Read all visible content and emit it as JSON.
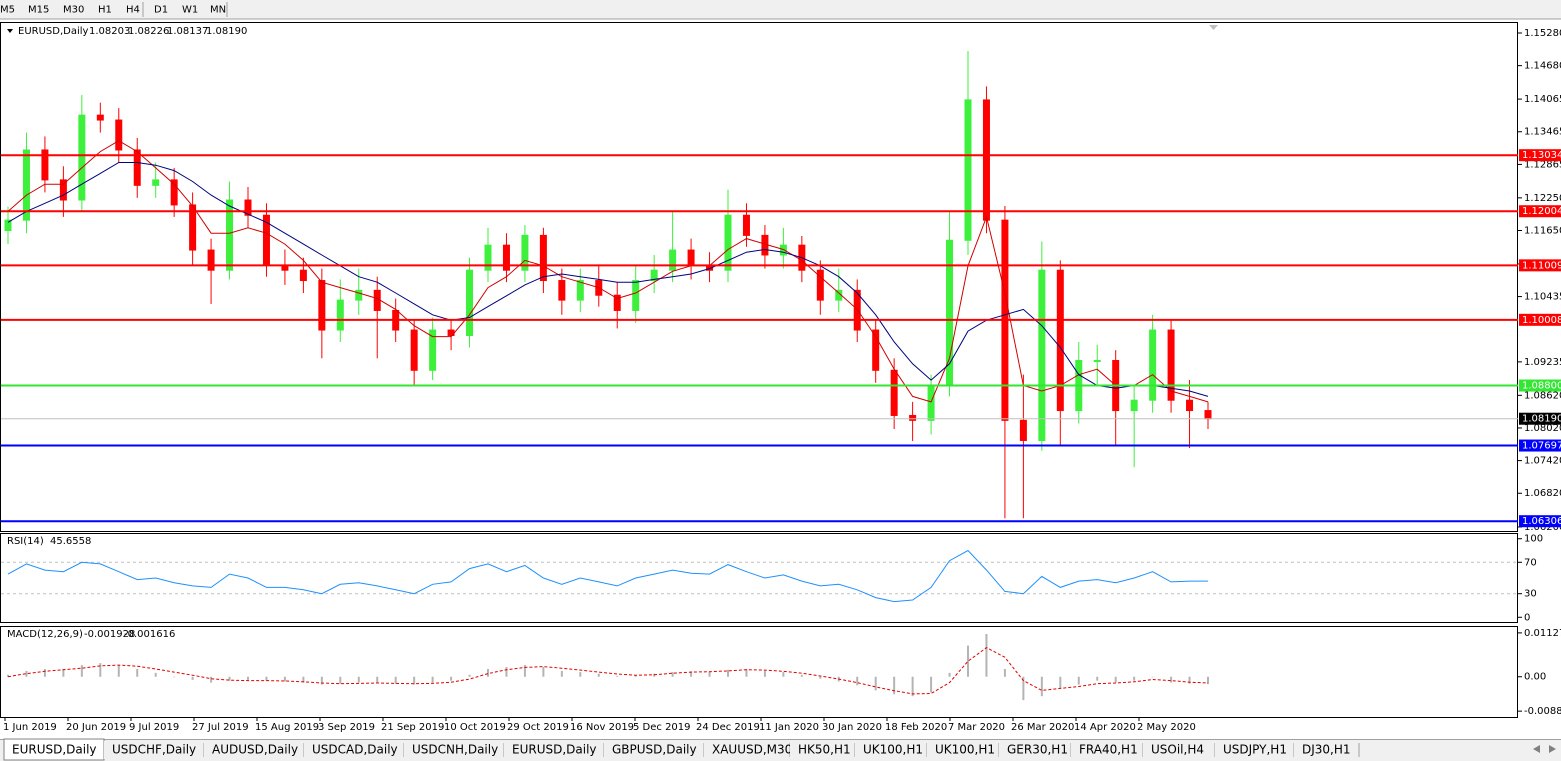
{
  "toolbar": {
    "timeframes": [
      "M5",
      "M15",
      "M30",
      "H1",
      "H4",
      "D1",
      "W1",
      "MN"
    ]
  },
  "chart_data": {
    "type": "candlestick",
    "symbol": "EURUSD,Daily",
    "header_ohlc": [
      "1.08203",
      "1.08226",
      "1.08137",
      "1.08190"
    ],
    "x_labels": [
      "1 Jun 2019",
      "20 Jun 2019",
      "9 Jul 2019",
      "27 Jul 2019",
      "15 Aug 2019",
      "3 Sep 2019",
      "21 Sep 2019",
      "10 Oct 2019",
      "29 Oct 2019",
      "16 Nov 2019",
      "5 Dec 2019",
      "24 Dec 2019",
      "11 Jan 2020",
      "30 Jan 2020",
      "18 Feb 2020",
      "7 Mar 2020",
      "26 Mar 2020",
      "14 Apr 2020",
      "2 May 2020"
    ],
    "open": [
      1.1165,
      1.1184,
      1.1313,
      1.1258,
      1.1221,
      1.1377,
      1.1368,
      1.1313,
      1.1248,
      1.1258,
      1.1212,
      1.1129,
      1.1092,
      1.1221,
      1.1193,
      1.1101,
      1.1092,
      1.1073,
      1.0982,
      1.1037,
      1.1055,
      1.1018,
      1.0982,
      1.0908,
      1.0982,
      1.0972,
      1.1092,
      1.1138,
      1.1092,
      1.1156,
      1.1073,
      1.1037,
      1.1073,
      1.1046,
      1.1018,
      1.1073,
      1.1092,
      1.1129,
      1.1101,
      1.1092,
      1.1193,
      1.1156,
      1.112,
      1.1138,
      1.1092,
      1.1037,
      1.1055,
      1.0982,
      1.0908,
      1.0825,
      1.0816,
      1.088,
      1.1147,
      1.1405,
      1.1184,
      1.0816,
      1.0779,
      1.1092,
      1.0834,
      1.0926,
      1.0926,
      1.0834,
      1.0853,
      1.0982,
      1.0853,
      1.0834
    ],
    "high": [
      1.1209,
      1.1345,
      1.1338,
      1.1283,
      1.1414,
      1.14,
      1.139,
      1.1335,
      1.129,
      1.128,
      1.1235,
      1.115,
      1.1255,
      1.1245,
      1.1215,
      1.113,
      1.1115,
      1.1095,
      1.1075,
      1.1095,
      1.108,
      1.104,
      1.1,
      1.1005,
      1.1,
      1.1115,
      1.117,
      1.116,
      1.1175,
      1.117,
      1.1095,
      1.1095,
      1.11,
      1.107,
      1.11,
      1.112,
      1.12,
      1.115,
      1.1125,
      1.124,
      1.1215,
      1.1175,
      1.117,
      1.1155,
      1.111,
      1.1095,
      1.1075,
      1.1,
      1.093,
      1.085,
      1.09,
      1.12,
      1.1495,
      1.143,
      1.121,
      1.09,
      1.1145,
      1.111,
      1.096,
      1.0955,
      1.0945,
      1.088,
      1.101,
      1.1,
      1.089,
      1.085
    ],
    "low": [
      1.114,
      1.116,
      1.1235,
      1.119,
      1.12,
      1.1345,
      1.129,
      1.1225,
      1.1225,
      1.119,
      1.11,
      1.103,
      1.1075,
      1.117,
      1.108,
      1.1065,
      1.105,
      1.093,
      1.096,
      1.101,
      1.093,
      1.096,
      1.088,
      1.089,
      1.0945,
      1.095,
      1.107,
      1.107,
      1.107,
      1.105,
      1.101,
      1.1015,
      1.1025,
      1.0985,
      1.0995,
      1.105,
      1.107,
      1.1075,
      1.107,
      1.107,
      1.1135,
      1.1095,
      1.1095,
      1.107,
      1.101,
      1.1015,
      1.096,
      1.0885,
      1.08,
      1.0778,
      1.079,
      1.086,
      1.112,
      1.116,
      1.0636,
      1.0636,
      1.076,
      1.077,
      1.081,
      1.088,
      1.077,
      1.073,
      1.083,
      1.083,
      1.0765,
      1.08
    ],
    "close": [
      1.1184,
      1.1313,
      1.1258,
      1.1221,
      1.1377,
      1.1368,
      1.1313,
      1.1248,
      1.1258,
      1.1212,
      1.1129,
      1.1092,
      1.1221,
      1.1193,
      1.1101,
      1.1092,
      1.1073,
      1.0982,
      1.1037,
      1.1055,
      1.1018,
      1.0982,
      1.0908,
      1.0982,
      1.0972,
      1.1092,
      1.1138,
      1.1092,
      1.1156,
      1.1073,
      1.1037,
      1.1073,
      1.1046,
      1.1018,
      1.1073,
      1.1092,
      1.1129,
      1.1101,
      1.1092,
      1.1193,
      1.1156,
      1.112,
      1.1138,
      1.1092,
      1.1037,
      1.1055,
      1.0982,
      1.0908,
      1.0825,
      1.0816,
      1.088,
      1.1147,
      1.1405,
      1.1184,
      1.0816,
      1.0779,
      1.1092,
      1.0834,
      1.0926,
      1.0926,
      1.0834,
      1.0853,
      1.0982,
      1.0853,
      1.0834,
      1.0819
    ],
    "up_color": "#3cf03c",
    "down_color": "#ff0000",
    "ylim": [
      1.06126,
      1.15464
    ],
    "yticks": [
      {
        "value": 1.1528,
        "label": "1.15280"
      },
      {
        "value": 1.1468,
        "label": "1.14680"
      },
      {
        "value": 1.14065,
        "label": "1.14065"
      },
      {
        "value": 1.13465,
        "label": "1.13465"
      },
      {
        "value": 1.12865,
        "label": "1.12865"
      },
      {
        "value": 1.1225,
        "label": "1.12250"
      },
      {
        "value": 1.1165,
        "label": "1.11650"
      },
      {
        "value": 1.11035,
        "label": "1.11035"
      },
      {
        "value": 1.10435,
        "label": "1.10435"
      },
      {
        "value": 1.09235,
        "label": "1.09235"
      },
      {
        "value": 1.0862,
        "label": "1.08620"
      },
      {
        "value": 1.0802,
        "label": "1.08020"
      },
      {
        "value": 1.0742,
        "label": "1.07420"
      },
      {
        "value": 1.0682,
        "label": "1.06820"
      },
      {
        "value": 1.062,
        "label": "1.06200"
      }
    ],
    "moving_averages": [
      {
        "color": "#d00000",
        "values": [
          1.12,
          1.123,
          1.125,
          1.125,
          1.128,
          1.131,
          1.133,
          1.131,
          1.128,
          1.125,
          1.121,
          1.116,
          1.116,
          1.117,
          1.116,
          1.114,
          1.111,
          1.107,
          1.106,
          1.105,
          1.104,
          1.102,
          1.099,
          1.097,
          1.097,
          1.101,
          1.106,
          1.108,
          1.111,
          1.11,
          1.108,
          1.107,
          1.106,
          1.104,
          1.105,
          1.107,
          1.109,
          1.11,
          1.11,
          1.113,
          1.115,
          1.114,
          1.113,
          1.111,
          1.108,
          1.105,
          1.102,
          1.097,
          1.091,
          1.086,
          1.085,
          1.093,
          1.11,
          1.119,
          1.105,
          1.088,
          1.087,
          1.088,
          1.09,
          1.091,
          1.088,
          1.088,
          1.09,
          1.087,
          1.086,
          1.085
        ]
      },
      {
        "color": "#000080",
        "values": [
          1.118,
          1.12,
          1.1215,
          1.123,
          1.125,
          1.127,
          1.129,
          1.129,
          1.1285,
          1.1275,
          1.1255,
          1.123,
          1.121,
          1.1195,
          1.118,
          1.116,
          1.114,
          1.112,
          1.11,
          1.108,
          1.107,
          1.105,
          1.103,
          1.101,
          1.1,
          1.1005,
          1.1025,
          1.1045,
          1.1065,
          1.108,
          1.1085,
          1.108,
          1.1075,
          1.107,
          1.107,
          1.1075,
          1.108,
          1.1085,
          1.1095,
          1.111,
          1.1125,
          1.113,
          1.1125,
          1.1115,
          1.11,
          1.108,
          1.105,
          1.101,
          1.096,
          1.092,
          1.089,
          1.092,
          1.098,
          1.1,
          1.101,
          1.102,
          1.099,
          1.095,
          1.09,
          1.088,
          1.0875,
          1.088,
          1.088,
          1.0875,
          1.087,
          1.086
        ]
      }
    ],
    "price_lines": [
      {
        "value": 1.13034,
        "color": "#ff0000"
      },
      {
        "value": 1.12004,
        "color": "#ff0000"
      },
      {
        "value": 1.11009,
        "color": "#ff0000"
      },
      {
        "value": 1.10008,
        "color": "#ff0000"
      },
      {
        "value": 1.088,
        "label": "1.08800",
        "color": "#32e632"
      },
      {
        "value": 1.07697,
        "color": "#0000ff"
      },
      {
        "value": 1.06306,
        "color": "#0000ff"
      }
    ],
    "current_price": {
      "value": 1.0819,
      "label": "1.08190",
      "color": "#000000"
    },
    "rsi": {
      "label": "RSI(14)",
      "last": 45.6558,
      "color": "#1e90ff",
      "ylim": [
        -6,
        106
      ],
      "yticks": [
        100,
        70,
        30,
        0
      ],
      "levels": [
        70,
        30
      ],
      "values": [
        55,
        68,
        60,
        58,
        70,
        68,
        58,
        48,
        50,
        44,
        40,
        38,
        55,
        50,
        38,
        38,
        35,
        30,
        42,
        44,
        40,
        35,
        30,
        42,
        45,
        62,
        68,
        58,
        66,
        50,
        42,
        50,
        45,
        40,
        50,
        55,
        60,
        56,
        55,
        67,
        58,
        50,
        54,
        46,
        40,
        42,
        35,
        25,
        20,
        22,
        38,
        72,
        85,
        60,
        33,
        30,
        52,
        38,
        46,
        48,
        44,
        50,
        58,
        45,
        46,
        46
      ]
    },
    "macd": {
      "label": "MACD(12,26,9)",
      "main_last": -0.001928,
      "signal_last": -0.001616,
      "hist_color": "#b4b4b4",
      "signal_color": "#e00000",
      "ylim": [
        -0.01035,
        0.01279
      ],
      "yticks": [
        0.011277,
        {
          "value": 0,
          "label": "0.00"
        },
        -0.008845
      ],
      "values": [
        0.0005,
        0.0015,
        0.002,
        0.002,
        0.003,
        0.0035,
        0.003,
        0.002,
        0.001,
        0,
        -0.0008,
        -0.0015,
        -0.001,
        -0.0008,
        -0.001,
        -0.0012,
        -0.0015,
        -0.002,
        -0.0018,
        -0.0015,
        -0.0015,
        -0.0018,
        -0.002,
        -0.0015,
        -0.001,
        0.0005,
        0.002,
        0.0025,
        0.003,
        0.0025,
        0.0015,
        0.0012,
        0.0008,
        0.0002,
        0.0003,
        0.0008,
        0.0012,
        0.0014,
        0.0012,
        0.0018,
        0.002,
        0.0015,
        0.0012,
        0.0005,
        -0.0005,
        -0.0012,
        -0.0022,
        -0.0035,
        -0.0045,
        -0.005,
        -0.004,
        0.001,
        0.008,
        0.011,
        0.002,
        -0.006,
        -0.005,
        -0.003,
        -0.002,
        -0.001,
        -0.0015,
        -0.001,
        0.0,
        -0.0015,
        -0.0018,
        -0.0019
      ],
      "signal": [
        0,
        0.0008,
        0.0014,
        0.0018,
        0.0022,
        0.0028,
        0.003,
        0.0027,
        0.002,
        0.0012,
        0.0004,
        -0.0005,
        -0.0009,
        -0.001,
        -0.001,
        -0.0011,
        -0.0013,
        -0.0016,
        -0.0018,
        -0.0017,
        -0.0016,
        -0.0017,
        -0.0018,
        -0.0017,
        -0.0014,
        -0.0006,
        0.0008,
        0.0018,
        0.0024,
        0.0026,
        0.0022,
        0.0017,
        0.0012,
        0.0007,
        0.0004,
        0.0005,
        0.0009,
        0.0012,
        0.0013,
        0.0015,
        0.0018,
        0.0017,
        0.0014,
        0.0009,
        0.0002,
        -0.0006,
        -0.0015,
        -0.0026,
        -0.0036,
        -0.0044,
        -0.0043,
        -0.0015,
        0.004,
        0.0075,
        0.005,
        -0.001,
        -0.0035,
        -0.003,
        -0.0025,
        -0.0018,
        -0.0016,
        -0.0013,
        -0.0007,
        -0.001,
        -0.0014,
        -0.0016
      ]
    }
  },
  "tabs": [
    "EURUSD,Daily",
    "USDCHF,Daily",
    "AUDUSD,Daily",
    "USDCAD,Daily",
    "USDCNH,Daily",
    "EURUSD,Daily",
    "GBPUSD,Daily",
    "XAUUSD,M30",
    "HK50,H1",
    "UK100,H1",
    "UK100,H1",
    "GER30,H1",
    "FRA40,H1",
    "USOil,H4",
    "USDJPY,H1",
    "DJ30,H1"
  ]
}
